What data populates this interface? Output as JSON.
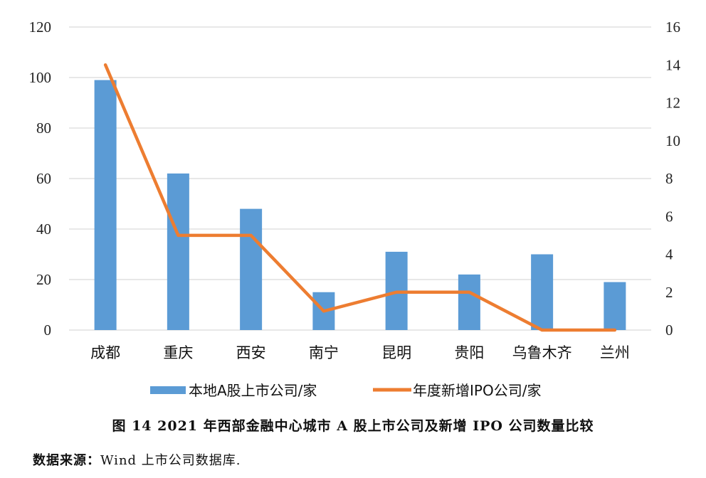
{
  "chart_data": {
    "type": "bar+line",
    "title": "",
    "categories": [
      "成都",
      "重庆",
      "西安",
      "南宁",
      "昆明",
      "贵阳",
      "乌鲁木齐",
      "兰州"
    ],
    "series": [
      {
        "name": "本地A股上市公司/家",
        "type": "bar",
        "axis": "left",
        "color": "#5b9bd5",
        "values": [
          99,
          62,
          48,
          15,
          31,
          22,
          30,
          19
        ]
      },
      {
        "name": "年度新增IPO公司/家",
        "type": "line",
        "axis": "right",
        "color": "#ed7d31",
        "values": [
          14,
          5,
          5,
          1,
          2,
          2,
          0,
          0
        ]
      }
    ],
    "xlabel": "",
    "ylabel": "",
    "ylim": [
      0,
      120
    ],
    "yticks": [
      0,
      20,
      40,
      60,
      80,
      100,
      120
    ],
    "y2lim": [
      0,
      16
    ],
    "y2ticks": [
      0,
      2,
      4,
      6,
      8,
      10,
      12,
      14,
      16
    ],
    "grid": true,
    "legend_position": "bottom"
  },
  "legend": {
    "bar_label": "本地A股上市公司/家",
    "line_label": "年度新增IPO公司/家"
  },
  "caption": "图 14 2021 年西部金融中心城市 A 股上市公司及新增 IPO 公司数量比较",
  "source": {
    "label": "数据来源：",
    "text": "Wind 上市公司数据库."
  }
}
